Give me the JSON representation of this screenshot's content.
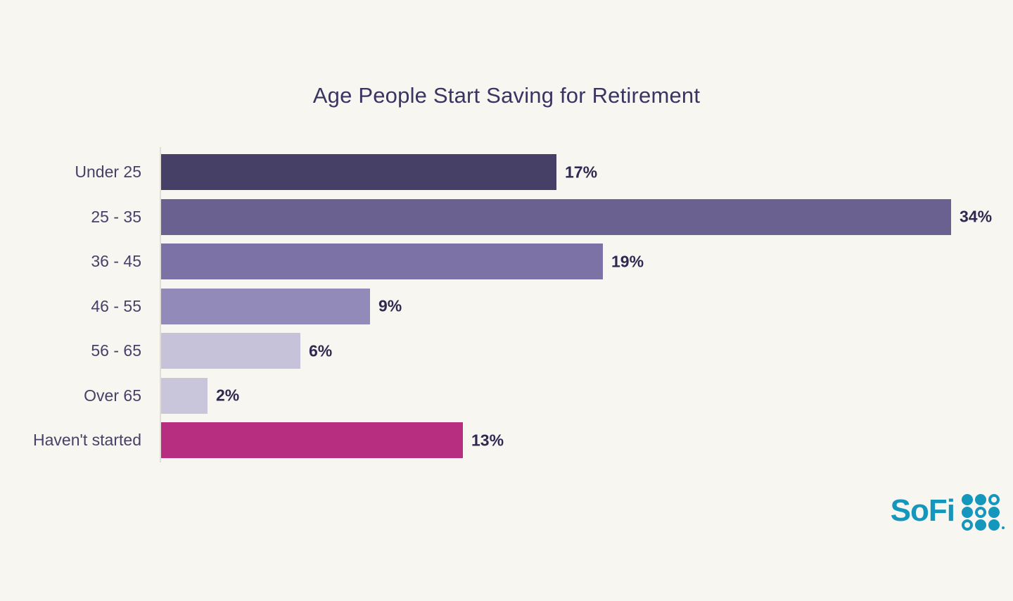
{
  "title": "Age People Start Saving for Retirement",
  "chart_data": {
    "type": "bar",
    "orientation": "horizontal",
    "title": "Age People Start Saving for Retirement",
    "categories": [
      "Under 25",
      "25 - 35",
      "36 - 45",
      "46 - 55",
      "56 - 65",
      "Over 65",
      "Haven't started"
    ],
    "values": [
      17,
      34,
      19,
      9,
      6,
      2,
      13
    ],
    "value_labels": [
      "17%",
      "34%",
      "19%",
      "9%",
      "6%",
      "2%",
      "13%"
    ],
    "value_suffix": "%",
    "xlim": [
      0,
      34
    ],
    "grid": false,
    "legend": false,
    "bar_colors": [
      "#463f66",
      "#6a6190",
      "#7c72a5",
      "#928ab8",
      "#c5c2da",
      "#c9c6dc",
      "#b72e81"
    ]
  },
  "layout_colors": {
    "background": "#f8f6f1",
    "title_text": "#3a3462",
    "category_text": "#474168",
    "value_text": "#2e2950",
    "axis_line": "#e0ddd7"
  },
  "logo": {
    "brand": "SoFi",
    "color": "#1496bd",
    "icon": "sofi-dot-grid-icon",
    "dot_pattern": [
      [
        1,
        1,
        0
      ],
      [
        1,
        0,
        1
      ],
      [
        0,
        1,
        1
      ]
    ]
  }
}
